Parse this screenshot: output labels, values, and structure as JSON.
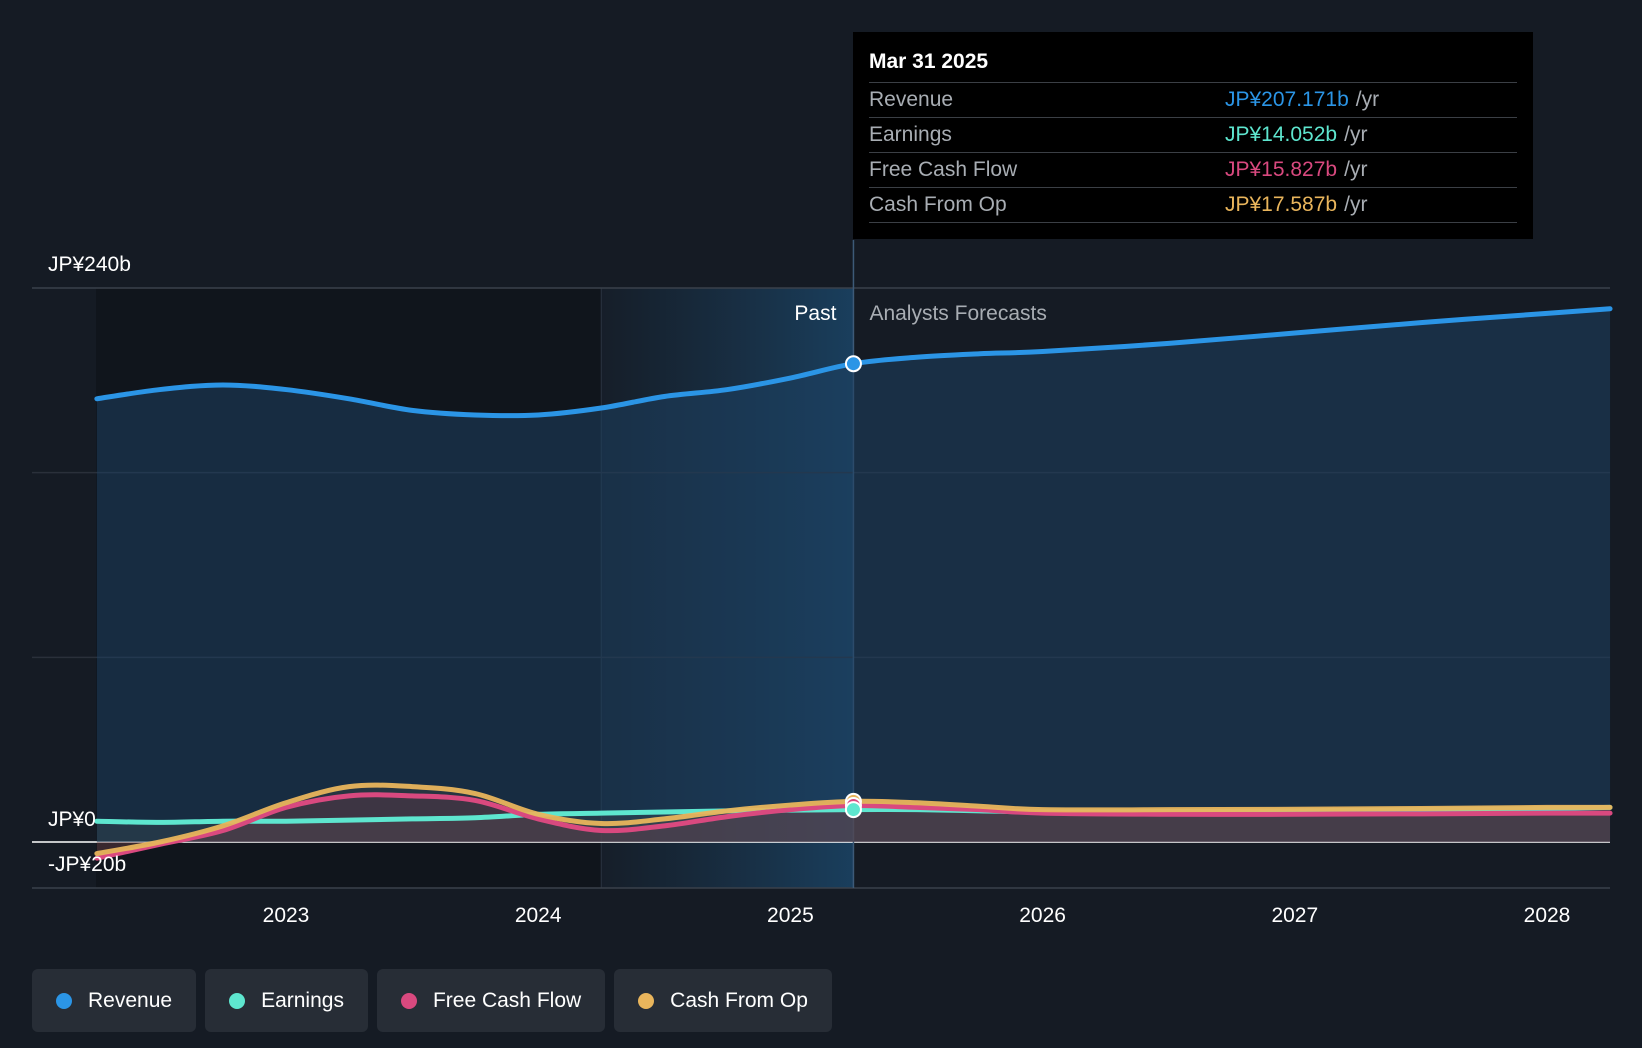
{
  "chart_data": {
    "type": "area",
    "y_axis_labels": [
      "JP¥240b",
      "JP¥0",
      "-JP¥20b"
    ],
    "ylim": [
      -20,
      240
    ],
    "x_ticks": [
      "2023",
      "2024",
      "2025",
      "2026",
      "2027",
      "2028"
    ],
    "past_label": "Past",
    "forecast_label": "Analysts Forecasts",
    "divider_x": 2025.25,
    "series": [
      {
        "name": "Revenue",
        "color": "#2b95e6",
        "points": [
          [
            2022.25,
            192
          ],
          [
            2022.5,
            196
          ],
          [
            2022.75,
            198
          ],
          [
            2023.0,
            196
          ],
          [
            2023.25,
            192
          ],
          [
            2023.5,
            187
          ],
          [
            2023.75,
            185
          ],
          [
            2024.0,
            185
          ],
          [
            2024.25,
            188
          ],
          [
            2024.5,
            193
          ],
          [
            2024.75,
            196
          ],
          [
            2025.0,
            201
          ],
          [
            2025.25,
            207.2
          ],
          [
            2025.5,
            210
          ],
          [
            2025.75,
            211.5
          ],
          [
            2026.0,
            212.5
          ],
          [
            2026.5,
            216
          ],
          [
            2027.0,
            220.5
          ],
          [
            2027.5,
            225
          ],
          [
            2028.0,
            229
          ],
          [
            2028.25,
            231
          ]
        ]
      },
      {
        "name": "Earnings",
        "color": "#5ee6cf",
        "points": [
          [
            2022.25,
            9
          ],
          [
            2022.5,
            8.5
          ],
          [
            2022.75,
            9
          ],
          [
            2023.0,
            9
          ],
          [
            2023.25,
            9.5
          ],
          [
            2023.5,
            10
          ],
          [
            2023.75,
            10.5
          ],
          [
            2024.0,
            12
          ],
          [
            2024.25,
            12.5
          ],
          [
            2024.5,
            13
          ],
          [
            2024.75,
            13.5
          ],
          [
            2025.0,
            13.8
          ],
          [
            2025.25,
            14.05
          ],
          [
            2025.5,
            14
          ],
          [
            2025.75,
            13.5
          ],
          [
            2026.0,
            13
          ],
          [
            2026.5,
            13.2
          ],
          [
            2027.0,
            13.5
          ],
          [
            2027.5,
            14
          ],
          [
            2028.0,
            14.5
          ],
          [
            2028.25,
            15
          ]
        ]
      },
      {
        "name": "Free Cash Flow",
        "color": "#d9497f",
        "points": [
          [
            2022.25,
            -7
          ],
          [
            2022.5,
            -1
          ],
          [
            2022.75,
            5
          ],
          [
            2023.0,
            15
          ],
          [
            2023.25,
            20
          ],
          [
            2023.5,
            20
          ],
          [
            2023.75,
            18
          ],
          [
            2024.0,
            10
          ],
          [
            2024.25,
            5
          ],
          [
            2024.5,
            7
          ],
          [
            2024.75,
            11
          ],
          [
            2025.0,
            14
          ],
          [
            2025.25,
            15.8
          ],
          [
            2025.5,
            15
          ],
          [
            2025.75,
            14
          ],
          [
            2026.0,
            12.5
          ],
          [
            2026.5,
            12
          ],
          [
            2027.0,
            12
          ],
          [
            2027.5,
            12.2
          ],
          [
            2028.0,
            12.5
          ],
          [
            2028.25,
            12.5
          ]
        ]
      },
      {
        "name": "Cash From Op",
        "color": "#e9b55c",
        "points": [
          [
            2022.25,
            -5
          ],
          [
            2022.5,
            0
          ],
          [
            2022.75,
            7
          ],
          [
            2023.0,
            17
          ],
          [
            2023.25,
            24
          ],
          [
            2023.5,
            24
          ],
          [
            2023.75,
            21
          ],
          [
            2024.0,
            12
          ],
          [
            2024.25,
            8
          ],
          [
            2024.5,
            10
          ],
          [
            2024.75,
            13.5
          ],
          [
            2025.0,
            16
          ],
          [
            2025.25,
            17.6
          ],
          [
            2025.5,
            17
          ],
          [
            2025.75,
            15.5
          ],
          [
            2026.0,
            14
          ],
          [
            2026.5,
            14
          ],
          [
            2027.0,
            14.2
          ],
          [
            2027.5,
            14.5
          ],
          [
            2028.0,
            15
          ],
          [
            2028.25,
            15
          ]
        ]
      }
    ]
  },
  "tooltip": {
    "date": "Mar 31 2025",
    "rows": [
      {
        "name": "Revenue",
        "value": "JP¥207.171b",
        "unit": "/yr",
        "color": "#2b95e6"
      },
      {
        "name": "Earnings",
        "value": "JP¥14.052b",
        "unit": "/yr",
        "color": "#5ee6cf"
      },
      {
        "name": "Free Cash Flow",
        "value": "JP¥15.827b",
        "unit": "/yr",
        "color": "#d9497f"
      },
      {
        "name": "Cash From Op",
        "value": "JP¥17.587b",
        "unit": "/yr",
        "color": "#e9b55c"
      }
    ]
  },
  "legend": [
    {
      "label": "Revenue",
      "color": "#2b95e6"
    },
    {
      "label": "Earnings",
      "color": "#5ee6cf"
    },
    {
      "label": "Free Cash Flow",
      "color": "#d9497f"
    },
    {
      "label": "Cash From Op",
      "color": "#e9b55c"
    }
  ]
}
